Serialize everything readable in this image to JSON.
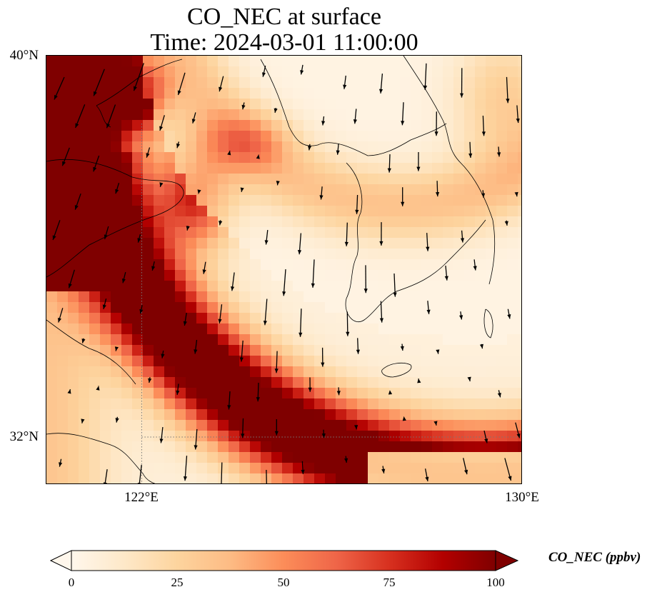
{
  "title": "CO_NEC at surface",
  "subtitle": "Time: 2024-03-01 11:00:00",
  "axes": {
    "lat_ticks": [
      {
        "value": 40,
        "label": "40°N"
      },
      {
        "value": 32,
        "label": "32°N"
      }
    ],
    "lon_ticks": [
      {
        "value": 122,
        "label": "122°E"
      },
      {
        "value": 130,
        "label": "130°E"
      }
    ],
    "lon_range": [
      120,
      130
    ],
    "lat_range": [
      31,
      40
    ],
    "gridlines": "dotted"
  },
  "colorbar": {
    "label": "CO_NEC (ppbv)",
    "min": 0,
    "max": 100,
    "ticks": [
      "0",
      "25",
      "50",
      "75",
      "100"
    ],
    "extend": "both",
    "colormap": "OrRd",
    "stops": [
      "#fff7ec",
      "#fee8c8",
      "#fdd49e",
      "#fdbb84",
      "#fc8d59",
      "#ef6548",
      "#d7301f",
      "#b30000",
      "#7f0000"
    ]
  },
  "overlays": [
    "coastlines",
    "wind-vectors"
  ]
}
